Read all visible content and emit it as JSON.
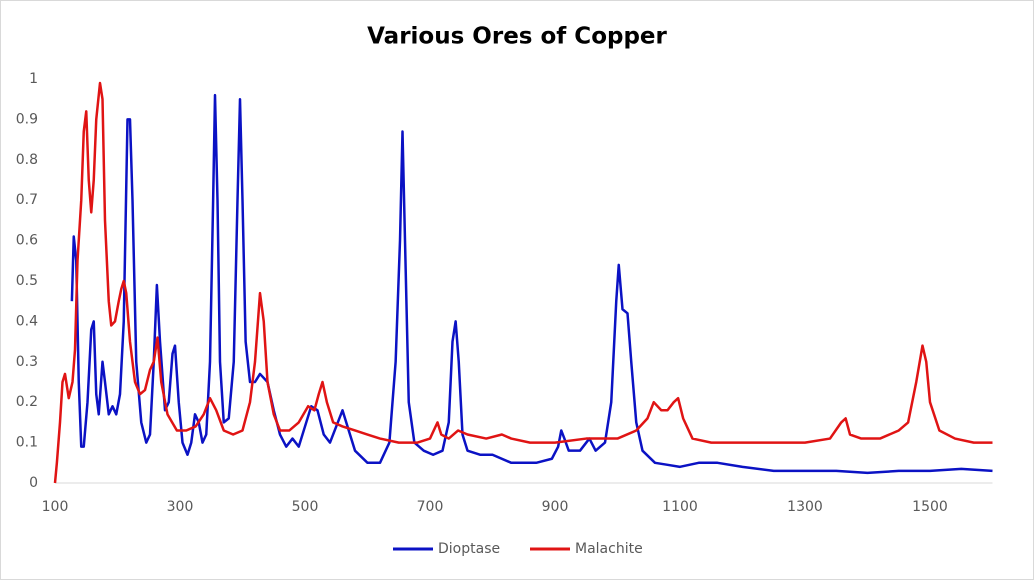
{
  "chart_data": {
    "type": "line",
    "title": "Various Ores of Copper",
    "xlim": [
      100,
      1600
    ],
    "xticks": [
      100,
      300,
      500,
      700,
      900,
      1100,
      1300,
      1500
    ],
    "ylim": [
      0,
      1
    ],
    "yticks": [
      0,
      0.1,
      0.2,
      0.3,
      0.4,
      0.5,
      0.6,
      0.7,
      0.8,
      0.9,
      1
    ],
    "grid": false,
    "legend": "bottom",
    "series": [
      {
        "name": "Dioptase",
        "color": "#0b12c4",
        "x": [
          127,
          130,
          134,
          138,
          142,
          146,
          152,
          158,
          162,
          166,
          170,
          176,
          180,
          186,
          192,
          198,
          204,
          210,
          216,
          220,
          224,
          230,
          238,
          246,
          252,
          258,
          263,
          268,
          276,
          282,
          288,
          292,
          298,
          304,
          312,
          318,
          324,
          330,
          336,
          342,
          348,
          353,
          356,
          360,
          364,
          370,
          378,
          386,
          392,
          396,
          400,
          405,
          412,
          420,
          428,
          440,
          450,
          460,
          470,
          480,
          490,
          500,
          510,
          520,
          530,
          540,
          550,
          560,
          570,
          580,
          600,
          620,
          635,
          645,
          652,
          656,
          660,
          666,
          675,
          690,
          705,
          720,
          730,
          736,
          741,
          746,
          752,
          760,
          780,
          800,
          830,
          870,
          895,
          905,
          910,
          915,
          922,
          940,
          955,
          965,
          980,
          990,
          998,
          1002,
          1008,
          1016,
          1022,
          1030,
          1040,
          1060,
          1080,
          1100,
          1130,
          1160,
          1200,
          1250,
          1300,
          1350,
          1400,
          1450,
          1500,
          1550,
          1600
        ],
        "values": [
          0.45,
          0.61,
          0.55,
          0.25,
          0.09,
          0.09,
          0.2,
          0.38,
          0.4,
          0.22,
          0.17,
          0.3,
          0.25,
          0.17,
          0.19,
          0.17,
          0.22,
          0.4,
          0.9,
          0.9,
          0.7,
          0.3,
          0.15,
          0.1,
          0.12,
          0.3,
          0.49,
          0.35,
          0.18,
          0.2,
          0.32,
          0.34,
          0.2,
          0.1,
          0.07,
          0.1,
          0.17,
          0.15,
          0.1,
          0.12,
          0.3,
          0.7,
          0.96,
          0.7,
          0.3,
          0.15,
          0.16,
          0.3,
          0.7,
          0.95,
          0.7,
          0.35,
          0.25,
          0.25,
          0.27,
          0.25,
          0.18,
          0.12,
          0.09,
          0.11,
          0.09,
          0.14,
          0.19,
          0.18,
          0.12,
          0.1,
          0.14,
          0.18,
          0.13,
          0.08,
          0.05,
          0.05,
          0.1,
          0.3,
          0.6,
          0.87,
          0.6,
          0.2,
          0.1,
          0.08,
          0.07,
          0.08,
          0.15,
          0.35,
          0.4,
          0.3,
          0.12,
          0.08,
          0.07,
          0.07,
          0.05,
          0.05,
          0.06,
          0.09,
          0.13,
          0.11,
          0.08,
          0.08,
          0.11,
          0.08,
          0.1,
          0.2,
          0.45,
          0.54,
          0.43,
          0.42,
          0.3,
          0.15,
          0.08,
          0.05,
          0.045,
          0.04,
          0.05,
          0.05,
          0.04,
          0.03,
          0.03,
          0.03,
          0.025,
          0.03,
          0.03,
          0.035,
          0.03
        ]
      },
      {
        "name": "Malachite",
        "color": "#e01414",
        "x": [
          100,
          103,
          108,
          112,
          116,
          122,
          128,
          132,
          136,
          142,
          146,
          150,
          154,
          158,
          162,
          166,
          172,
          176,
          180,
          186,
          190,
          196,
          202,
          206,
          210,
          214,
          220,
          228,
          236,
          244,
          252,
          258,
          264,
          270,
          280,
          295,
          310,
          325,
          338,
          348,
          358,
          370,
          385,
          400,
          412,
          420,
          428,
          434,
          440,
          450,
          460,
          475,
          490,
          505,
          515,
          522,
          528,
          535,
          545,
          560,
          580,
          600,
          620,
          650,
          680,
          700,
          712,
          718,
          730,
          745,
          760,
          790,
          815,
          830,
          860,
          900,
          950,
          1000,
          1030,
          1048,
          1058,
          1070,
          1080,
          1090,
          1097,
          1105,
          1120,
          1150,
          1200,
          1250,
          1300,
          1340,
          1358,
          1365,
          1372,
          1390,
          1420,
          1450,
          1465,
          1478,
          1488,
          1494,
          1500,
          1515,
          1540,
          1570,
          1600
        ],
        "values": [
          0,
          0.05,
          0.15,
          0.25,
          0.27,
          0.21,
          0.25,
          0.33,
          0.55,
          0.7,
          0.87,
          0.92,
          0.75,
          0.67,
          0.75,
          0.9,
          0.99,
          0.95,
          0.65,
          0.45,
          0.39,
          0.4,
          0.45,
          0.48,
          0.5,
          0.47,
          0.35,
          0.25,
          0.22,
          0.23,
          0.28,
          0.3,
          0.36,
          0.25,
          0.17,
          0.13,
          0.13,
          0.14,
          0.17,
          0.21,
          0.18,
          0.13,
          0.12,
          0.13,
          0.2,
          0.3,
          0.47,
          0.4,
          0.25,
          0.17,
          0.13,
          0.13,
          0.15,
          0.19,
          0.18,
          0.22,
          0.25,
          0.2,
          0.15,
          0.14,
          0.13,
          0.12,
          0.11,
          0.1,
          0.1,
          0.11,
          0.15,
          0.12,
          0.11,
          0.13,
          0.12,
          0.11,
          0.12,
          0.11,
          0.1,
          0.1,
          0.11,
          0.11,
          0.13,
          0.16,
          0.2,
          0.18,
          0.18,
          0.2,
          0.21,
          0.16,
          0.11,
          0.1,
          0.1,
          0.1,
          0.1,
          0.11,
          0.15,
          0.16,
          0.12,
          0.11,
          0.11,
          0.13,
          0.15,
          0.25,
          0.34,
          0.3,
          0.2,
          0.13,
          0.11,
          0.1,
          0.1
        ]
      }
    ]
  }
}
